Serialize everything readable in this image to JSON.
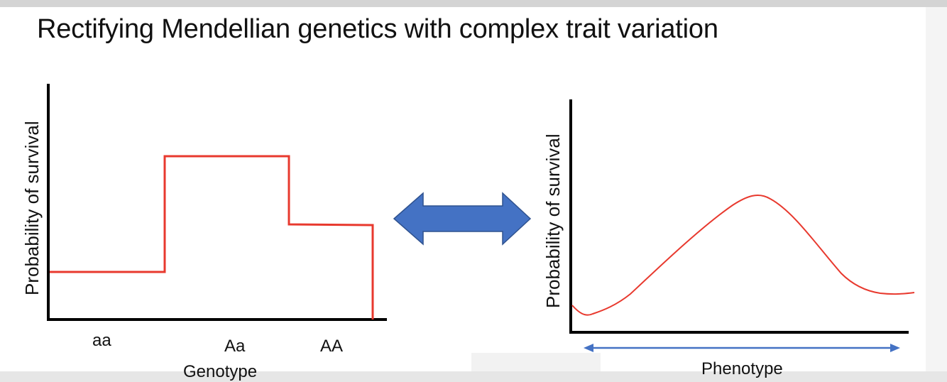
{
  "slide": {
    "title": "Rectifying Mendellian genetics with complex trait variation"
  },
  "chart_data": [
    {
      "type": "line",
      "shape": "step",
      "title": "",
      "ylabel": "Probability of survival",
      "xlabel": "Genotype",
      "categories": [
        "aa",
        "Aa",
        "AA"
      ],
      "values": [
        0.2,
        0.72,
        0.42
      ],
      "ylim": [
        0,
        1
      ],
      "line_color": "#e8392e",
      "grid": false
    },
    {
      "type": "line",
      "shape": "curve",
      "title": "",
      "ylabel": "Probability of survival",
      "xlabel": "Phenotype",
      "x": [
        0.0,
        0.04,
        0.15,
        0.3,
        0.45,
        0.52,
        0.6,
        0.72,
        0.82,
        0.9,
        1.0
      ],
      "y": [
        0.11,
        0.07,
        0.15,
        0.39,
        0.6,
        0.63,
        0.57,
        0.3,
        0.2,
        0.17,
        0.17
      ],
      "ylim": [
        0,
        1
      ],
      "line_color": "#e8392e",
      "axis_arrow_color": "#4472c4",
      "grid": false
    }
  ],
  "connector": {
    "icon": "double-arrow-icon",
    "color": "#4472c4",
    "outline": "#2f528f"
  }
}
